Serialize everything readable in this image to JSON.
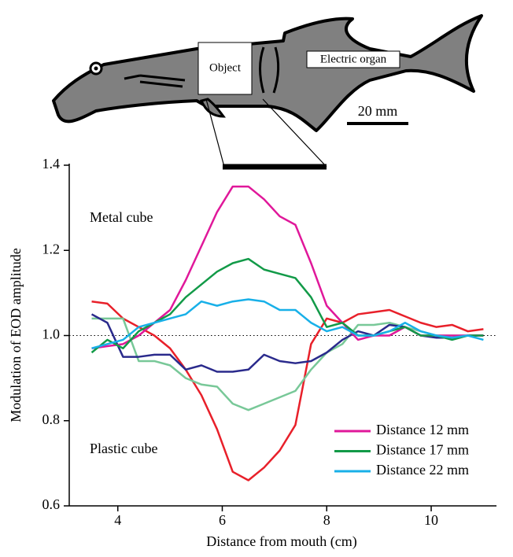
{
  "chart_data": {
    "type": "line",
    "xlabel": "Distance from mouth (cm)",
    "ylabel": "Modulation of EOD amplitude",
    "x": [
      3.5,
      3.8,
      4.1,
      4.4,
      4.7,
      5.0,
      5.3,
      5.6,
      5.9,
      6.2,
      6.5,
      6.8,
      7.1,
      7.4,
      7.7,
      8.0,
      8.3,
      8.6,
      8.9,
      9.2,
      9.5,
      9.8,
      10.1,
      10.4,
      10.7,
      11.0
    ],
    "series": [
      {
        "name": "Distance 12 mm",
        "color": "#e0189a",
        "values": [
          0.97,
          0.975,
          0.98,
          1.0,
          1.03,
          1.06,
          1.13,
          1.21,
          1.29,
          1.35,
          1.35,
          1.32,
          1.28,
          1.26,
          1.17,
          1.07,
          1.03,
          0.99,
          1.0,
          1.0,
          1.02,
          1.0,
          1.0,
          1.0,
          1.0,
          1.0
        ]
      },
      {
        "name": "Distance 17 mm",
        "color": "#129a48",
        "values": [
          0.96,
          0.99,
          0.97,
          1.01,
          1.03,
          1.05,
          1.09,
          1.12,
          1.15,
          1.17,
          1.18,
          1.155,
          1.145,
          1.135,
          1.09,
          1.02,
          1.03,
          1.0,
          1.0,
          1.01,
          1.02,
          1.0,
          1.0,
          0.99,
          1.0,
          1.0
        ]
      },
      {
        "name": "Distance 22 mm",
        "color": "#18b0e8",
        "values": [
          0.97,
          0.98,
          0.99,
          1.02,
          1.03,
          1.04,
          1.05,
          1.08,
          1.07,
          1.08,
          1.085,
          1.08,
          1.06,
          1.06,
          1.03,
          1.01,
          1.02,
          1.0,
          1.0,
          1.01,
          1.03,
          1.01,
          1.0,
          0.995,
          1.0,
          0.99
        ]
      },
      {
        "color": "#e8202a",
        "values": [
          1.08,
          1.075,
          1.04,
          1.02,
          1.0,
          0.97,
          0.92,
          0.86,
          0.78,
          0.68,
          0.66,
          0.69,
          0.73,
          0.79,
          0.98,
          1.04,
          1.03,
          1.05,
          1.055,
          1.06,
          1.045,
          1.03,
          1.02,
          1.025,
          1.01,
          1.015
        ]
      },
      {
        "color": "#78c898",
        "values": [
          1.04,
          1.04,
          1.04,
          0.94,
          0.94,
          0.93,
          0.9,
          0.885,
          0.88,
          0.84,
          0.825,
          0.84,
          0.855,
          0.87,
          0.92,
          0.96,
          0.98,
          1.025,
          1.025,
          1.03,
          1.02,
          1.01,
          1.0,
          1.0,
          1.0,
          1.0
        ]
      },
      {
        "color": "#2a2a8c",
        "values": [
          1.05,
          1.03,
          0.95,
          0.95,
          0.955,
          0.955,
          0.92,
          0.93,
          0.915,
          0.915,
          0.92,
          0.955,
          0.94,
          0.935,
          0.94,
          0.96,
          0.99,
          1.01,
          1.0,
          1.025,
          1.02,
          1.0,
          0.995,
          0.995,
          1.0,
          1.0
        ]
      }
    ],
    "xlim": [
      3.07,
      11.25
    ],
    "xticks": [
      4,
      6,
      8,
      10
    ],
    "ylim": [
      0.6,
      1.4
    ],
    "yticks": [
      {
        "value": 0.6,
        "label": "0.6"
      },
      {
        "value": 0.8,
        "label": "0.8"
      },
      {
        "value": 1.0,
        "label": "1.0"
      },
      {
        "value": 1.2,
        "label": "1.2"
      },
      {
        "value": 1.4,
        "label": "1.4"
      }
    ],
    "reference_line": 1.0,
    "annotations": [
      "Metal cube",
      "Plastic cube"
    ],
    "legend": "lower right"
  },
  "diagram": {
    "object_label": "Object",
    "organ_label": "Electric organ",
    "scale_label": "20 mm"
  }
}
